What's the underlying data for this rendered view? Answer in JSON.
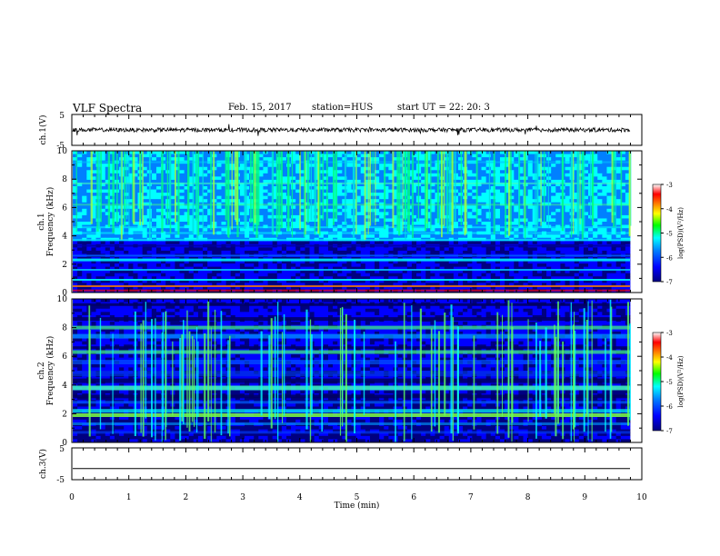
{
  "header": {
    "title": "VLF Spectra",
    "date": "Feb. 15, 2017",
    "station": "station=HUS",
    "start": "start  UT =   22: 20: 3"
  },
  "colorbar": {
    "label": "log(PSD)(V²/Hz)",
    "ticks": [
      "-3",
      "-4",
      "-5",
      "-6",
      "-7"
    ],
    "colors": [
      "#000080",
      "#0000ff",
      "#0080ff",
      "#00ffff",
      "#00ff00",
      "#ffff00",
      "#ff8000",
      "#ff0000",
      "#ffffff"
    ]
  },
  "chart_data": [
    {
      "type": "line",
      "ylabel": "ch.1(V)",
      "ylim": [
        -5,
        5
      ],
      "yticks": [
        "5",
        "-5"
      ],
      "xlim": [
        0,
        10
      ],
      "description_values": {
        "baseline": 0,
        "color": "#000000"
      }
    },
    {
      "type": "heatmap",
      "ylabel_line1": "ch.1",
      "ylabel_line2": "Frequency (kHz)",
      "ylim": [
        0,
        10
      ],
      "yticks": [
        "0",
        "2",
        "4",
        "6",
        "8",
        "10"
      ],
      "xlim": [
        0,
        10
      ],
      "zlim": [
        -7,
        -3
      ]
    },
    {
      "type": "heatmap",
      "ylabel_line1": "ch.2",
      "ylabel_line2": "Frequency (kHz)",
      "ylim": [
        0,
        10
      ],
      "yticks": [
        "0",
        "2",
        "4",
        "6",
        "8",
        "10"
      ],
      "xlim": [
        0,
        10
      ],
      "zlim": [
        -7,
        -3
      ]
    },
    {
      "type": "line",
      "ylabel": "ch.3(V)",
      "ylim": [
        -5,
        5
      ],
      "yticks": [
        "5",
        "-5"
      ],
      "xlim": [
        0,
        10
      ],
      "xlabel": "Time (min)",
      "xticks": [
        "0",
        "1",
        "2",
        "3",
        "4",
        "5",
        "6",
        "7",
        "8",
        "9",
        "10"
      ],
      "description_values": {
        "level": -1.5,
        "color": "#000000"
      }
    }
  ]
}
